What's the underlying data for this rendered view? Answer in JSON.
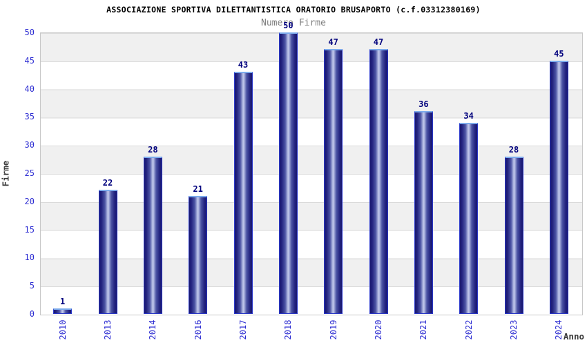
{
  "chart_data": {
    "type": "bar",
    "title": "ASSOCIAZIONE SPORTIVA DILETTANTISTICA ORATORIO BRUSAPORTO (c.f.03312380169)",
    "subtitle": "Numero Firme",
    "xlabel": "Anno",
    "ylabel": "Firme",
    "categories": [
      "2010",
      "2013",
      "2014",
      "2016",
      "2017",
      "2018",
      "2019",
      "2020",
      "2021",
      "2022",
      "2023",
      "2024"
    ],
    "values": [
      1,
      22,
      28,
      21,
      43,
      50,
      47,
      47,
      36,
      34,
      28,
      45
    ],
    "ylim": [
      0,
      50
    ],
    "yticks": [
      0,
      5,
      10,
      15,
      20,
      25,
      30,
      35,
      40,
      45,
      50
    ],
    "grid": "horizontal-bands",
    "legend": "none"
  },
  "colors": {
    "tick_label": "#2d2dd2",
    "value_label": "#00007d",
    "subtitle": "#7d7d7d",
    "axis_label": "#3a3a3a",
    "band_gray": "#f0f0f0",
    "grid_line": "#dadada",
    "plot_border": "#c8c8c8",
    "bar_border": "#2b38c8",
    "bar_top_cap": "#7cabec",
    "bar_edge_dark": "#181770",
    "bar_mid": "#4d55a5",
    "bar_center_light": "#bcc3e8"
  }
}
